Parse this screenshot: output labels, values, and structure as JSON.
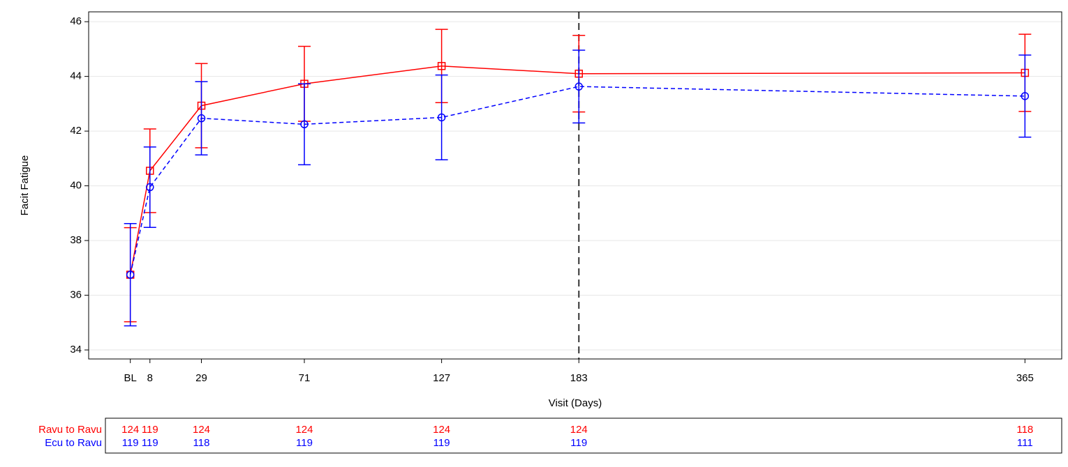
{
  "chart_data": {
    "type": "line",
    "x_label": "Visit (Days)",
    "y_label": "Facit Fatigue",
    "x": [
      0,
      8,
      29,
      71,
      127,
      183,
      365
    ],
    "xlim": [
      -17,
      380
    ],
    "xticks": [
      {
        "value": 0,
        "label": "BL"
      },
      8,
      29,
      71,
      127,
      183,
      365
    ],
    "ylim": [
      33.67,
      46.36
    ],
    "yticks": [
      34,
      36,
      38,
      40,
      42,
      44,
      46
    ],
    "grid": true,
    "reference_line_x": 183,
    "series": [
      {
        "name": "Ravu to Ravu",
        "color": "#ff0000",
        "marker": "square",
        "line_style": "solid",
        "values": [
          36.75,
          40.55,
          42.93,
          43.73,
          44.38,
          44.1,
          44.13
        ],
        "errors": [
          1.72,
          1.53,
          1.54,
          1.37,
          1.34,
          1.4,
          1.41
        ],
        "counts": [
          124,
          119,
          124,
          124,
          124,
          124,
          118
        ]
      },
      {
        "name": "Ecu to Ravu",
        "color": "#0000ff",
        "marker": "circle",
        "line_style": "dashed",
        "values": [
          36.75,
          39.95,
          42.47,
          42.25,
          42.5,
          43.63,
          43.28
        ],
        "errors": [
          1.87,
          1.47,
          1.34,
          1.48,
          1.55,
          1.33,
          1.5
        ],
        "counts": [
          119,
          119,
          118,
          119,
          119,
          119,
          111
        ]
      }
    ]
  }
}
